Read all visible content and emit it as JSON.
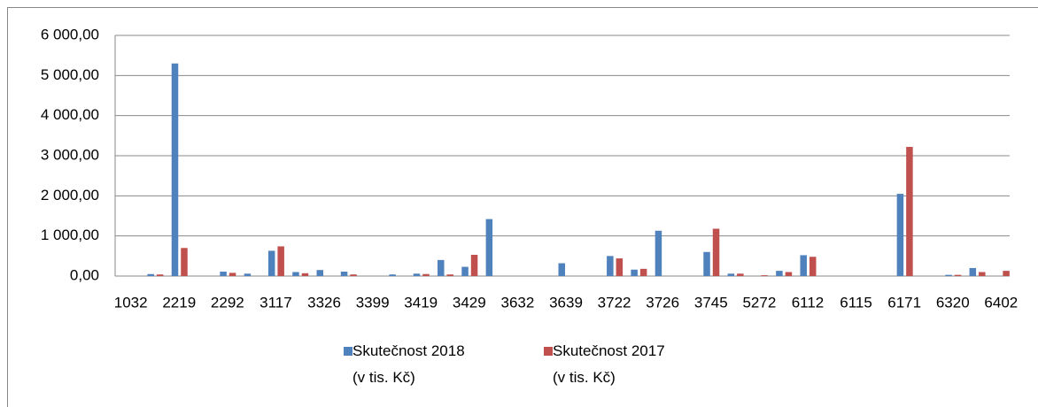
{
  "chart_data": {
    "type": "bar",
    "categories": [
      "1032",
      null,
      "2219",
      null,
      "2292",
      null,
      "3117",
      null,
      "3326",
      null,
      "3399",
      null,
      "3419",
      null,
      "3429",
      null,
      "3632",
      null,
      "3639",
      null,
      "3722",
      null,
      "3726",
      null,
      "3745",
      null,
      "5272",
      null,
      "6112",
      null,
      "6115",
      null,
      "6171",
      null,
      "6320",
      null,
      "6402"
    ],
    "series": [
      {
        "name": "Skutečnost 2018\n(v tis. Kč)",
        "color": "#4f81bd",
        "values": [
          0,
          50,
          5300,
          0,
          110,
          60,
          630,
          100,
          150,
          110,
          0,
          40,
          60,
          400,
          230,
          1420,
          0,
          0,
          320,
          0,
          500,
          160,
          1130,
          0,
          600,
          60,
          0,
          130,
          520,
          0,
          0,
          0,
          2050,
          0,
          30,
          200,
          0
        ]
      },
      {
        "name": "Skutečnost  2017\n(v tis. Kč)",
        "color": "#c0504d",
        "values": [
          0,
          40,
          700,
          0,
          80,
          0,
          740,
          70,
          0,
          40,
          0,
          0,
          50,
          40,
          530,
          0,
          0,
          0,
          0,
          0,
          440,
          180,
          0,
          0,
          1180,
          60,
          20,
          100,
          480,
          0,
          0,
          0,
          3220,
          0,
          30,
          100,
          130
        ]
      }
    ],
    "ylim": [
      0,
      6000
    ],
    "yticks": [
      {
        "value": 0,
        "label": "0,00"
      },
      {
        "value": 1000,
        "label": "1 000,00"
      },
      {
        "value": 2000,
        "label": "2 000,00"
      },
      {
        "value": 3000,
        "label": "3 000,00"
      },
      {
        "value": 4000,
        "label": "4 000,00"
      },
      {
        "value": 5000,
        "label": "5 000,00"
      },
      {
        "value": 6000,
        "label": "6 000,00"
      }
    ],
    "grid": true,
    "legend": "bottom"
  }
}
